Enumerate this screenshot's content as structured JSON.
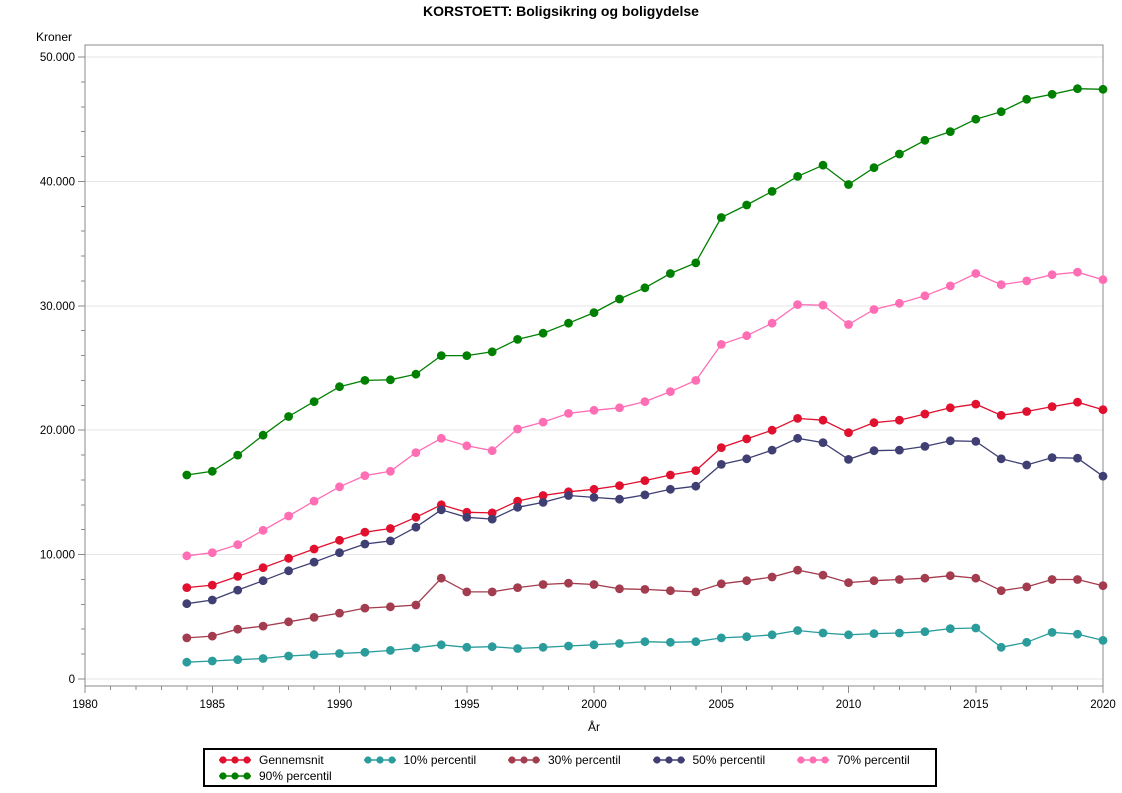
{
  "title": "KORSTOETT: Boligsikring og boligydelse",
  "colors": {
    "axis": "#8b8b8b",
    "grid": "#e5e5e5",
    "background": "#ffffff",
    "text": "#000000",
    "legend_border": "#000000"
  },
  "chart_data": {
    "type": "line",
    "title": "KORSTOETT: Boligsikring og boligydelse",
    "xlabel": "År",
    "ylabel": "Kroner",
    "xlim": [
      1980,
      2020
    ],
    "ylim": [
      0,
      50000
    ],
    "x_major_step": 5,
    "x_minor_step": 1,
    "y_major_step": 10000,
    "y_minor_step": 2000,
    "x_tick_labels": [
      "1980",
      "1985",
      "1990",
      "1995",
      "2000",
      "2005",
      "2010",
      "2015",
      "2020"
    ],
    "y_tick_labels": [
      "0",
      "10.000",
      "20.000",
      "30.000",
      "40.000",
      "50.000"
    ],
    "grid": "horizontal-major-only",
    "legend_position": "bottom",
    "marker": "filled-circle",
    "x": [
      1984,
      1985,
      1986,
      1987,
      1988,
      1989,
      1990,
      1991,
      1992,
      1993,
      1994,
      1995,
      1996,
      1997,
      1998,
      1999,
      2000,
      2001,
      2002,
      2003,
      2004,
      2005,
      2006,
      2007,
      2008,
      2009,
      2010,
      2011,
      2012,
      2013,
      2014,
      2015,
      2016,
      2017,
      2018,
      2019,
      2020
    ],
    "series": [
      {
        "name": "Gennemsnit",
        "color": "#e0102e",
        "values": [
          7350,
          7550,
          8250,
          8950,
          9700,
          10450,
          11150,
          11800,
          12100,
          13000,
          14000,
          13400,
          13350,
          14300,
          14750,
          15050,
          15250,
          15550,
          15950,
          16400,
          16750,
          18600,
          19300,
          20000,
          20950,
          20800,
          19800,
          20600,
          20800,
          21300,
          21800,
          22100,
          21200,
          21500,
          21900,
          22250,
          21650
        ]
      },
      {
        "name": "10% percentil",
        "color": "#2a9c9c",
        "values": [
          1350,
          1450,
          1550,
          1650,
          1850,
          1950,
          2050,
          2150,
          2300,
          2500,
          2750,
          2550,
          2600,
          2450,
          2550,
          2650,
          2750,
          2850,
          3000,
          2950,
          3000,
          3300,
          3400,
          3550,
          3900,
          3700,
          3550,
          3650,
          3700,
          3800,
          4050,
          4100,
          2550,
          2950,
          3750,
          3600,
          3100
        ]
      },
      {
        "name": "30% percentil",
        "color": "#a23c4e",
        "values": [
          3300,
          3450,
          4000,
          4250,
          4600,
          4950,
          5300,
          5700,
          5800,
          5950,
          8100,
          7000,
          7000,
          7350,
          7600,
          7700,
          7600,
          7250,
          7200,
          7100,
          7000,
          7650,
          7900,
          8200,
          8750,
          8350,
          7750,
          7900,
          8000,
          8100,
          8300,
          8100,
          7100,
          7400,
          8000,
          8000,
          7500
        ]
      },
      {
        "name": "50% percentil",
        "color": "#3f3f73",
        "values": [
          6050,
          6350,
          7150,
          7900,
          8700,
          9400,
          10150,
          10850,
          11100,
          12200,
          13600,
          13000,
          12850,
          13800,
          14200,
          14750,
          14600,
          14450,
          14800,
          15250,
          15500,
          17250,
          17700,
          18400,
          19350,
          19000,
          17650,
          18350,
          18400,
          18700,
          19150,
          19100,
          17700,
          17200,
          17800,
          17750,
          16300
        ]
      },
      {
        "name": "70% percentil",
        "color": "#ff6eb4",
        "values": [
          9900,
          10150,
          10800,
          11950,
          13100,
          14300,
          15450,
          16350,
          16700,
          18200,
          19350,
          18750,
          18350,
          20100,
          20650,
          21350,
          21600,
          21800,
          22300,
          23100,
          24000,
          26900,
          27600,
          28600,
          30100,
          30050,
          28500,
          29700,
          30200,
          30800,
          31600,
          32600,
          31700,
          32000,
          32500,
          32700,
          32100
        ]
      },
      {
        "name": "90% percentil",
        "color": "#008000",
        "values": [
          16400,
          16700,
          18000,
          19600,
          21100,
          22300,
          23500,
          24000,
          24050,
          24500,
          26000,
          26000,
          26300,
          27300,
          27800,
          28600,
          29450,
          30550,
          31450,
          32600,
          33450,
          37100,
          38100,
          39200,
          40400,
          41300,
          39750,
          41100,
          42200,
          43300,
          44000,
          45000,
          45600,
          46600,
          47000,
          47450,
          47400
        ]
      }
    ]
  }
}
